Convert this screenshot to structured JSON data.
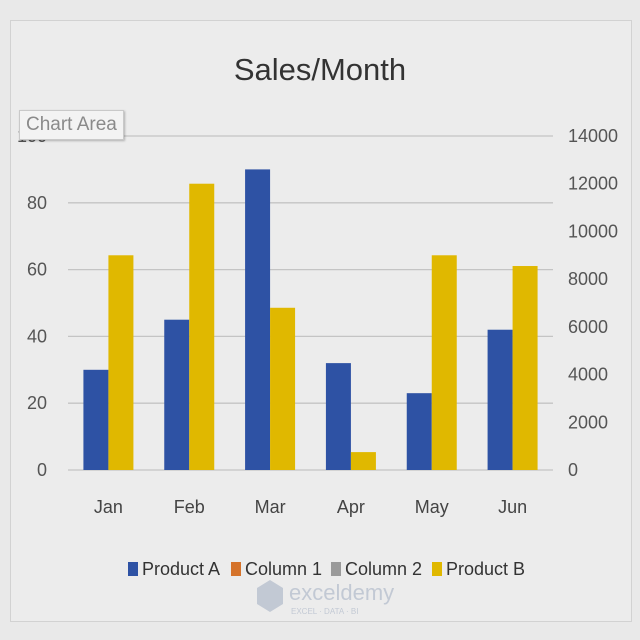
{
  "chart_data": {
    "type": "bar",
    "title": "Sales/Month",
    "categories": [
      "Jan",
      "Feb",
      "Mar",
      "Apr",
      "May",
      "Jun"
    ],
    "series": [
      {
        "name": "Product A",
        "axis": "primary",
        "color": "#2e52a4",
        "values": [
          30,
          45,
          90,
          32,
          23,
          42
        ]
      },
      {
        "name": "Column 1",
        "axis": "primary",
        "color": "#d5732b",
        "values": [
          0,
          0,
          0,
          0,
          0,
          0
        ]
      },
      {
        "name": "Column 2",
        "axis": "primary",
        "color": "#9a9a9a",
        "values": [
          0,
          0,
          0,
          0,
          0,
          0
        ]
      },
      {
        "name": "Product B",
        "axis": "secondary",
        "color": "#e0b800",
        "values": [
          9000,
          12000,
          6800,
          750,
          9000,
          8550
        ]
      }
    ],
    "y_axis": {
      "range": [
        0,
        100
      ],
      "ticks": [
        "0",
        "20",
        "40",
        "60",
        "80",
        "100"
      ]
    },
    "y2_axis": {
      "range": [
        0,
        14000
      ],
      "ticks": [
        "0",
        "2000",
        "4000",
        "6000",
        "8000",
        "10000",
        "12000",
        "14000"
      ]
    },
    "grid": true,
    "legend_position": "bottom"
  },
  "tooltip": "Chart Area",
  "watermark": {
    "name": "exceldemy",
    "tagline": "EXCEL · DATA · BI"
  }
}
